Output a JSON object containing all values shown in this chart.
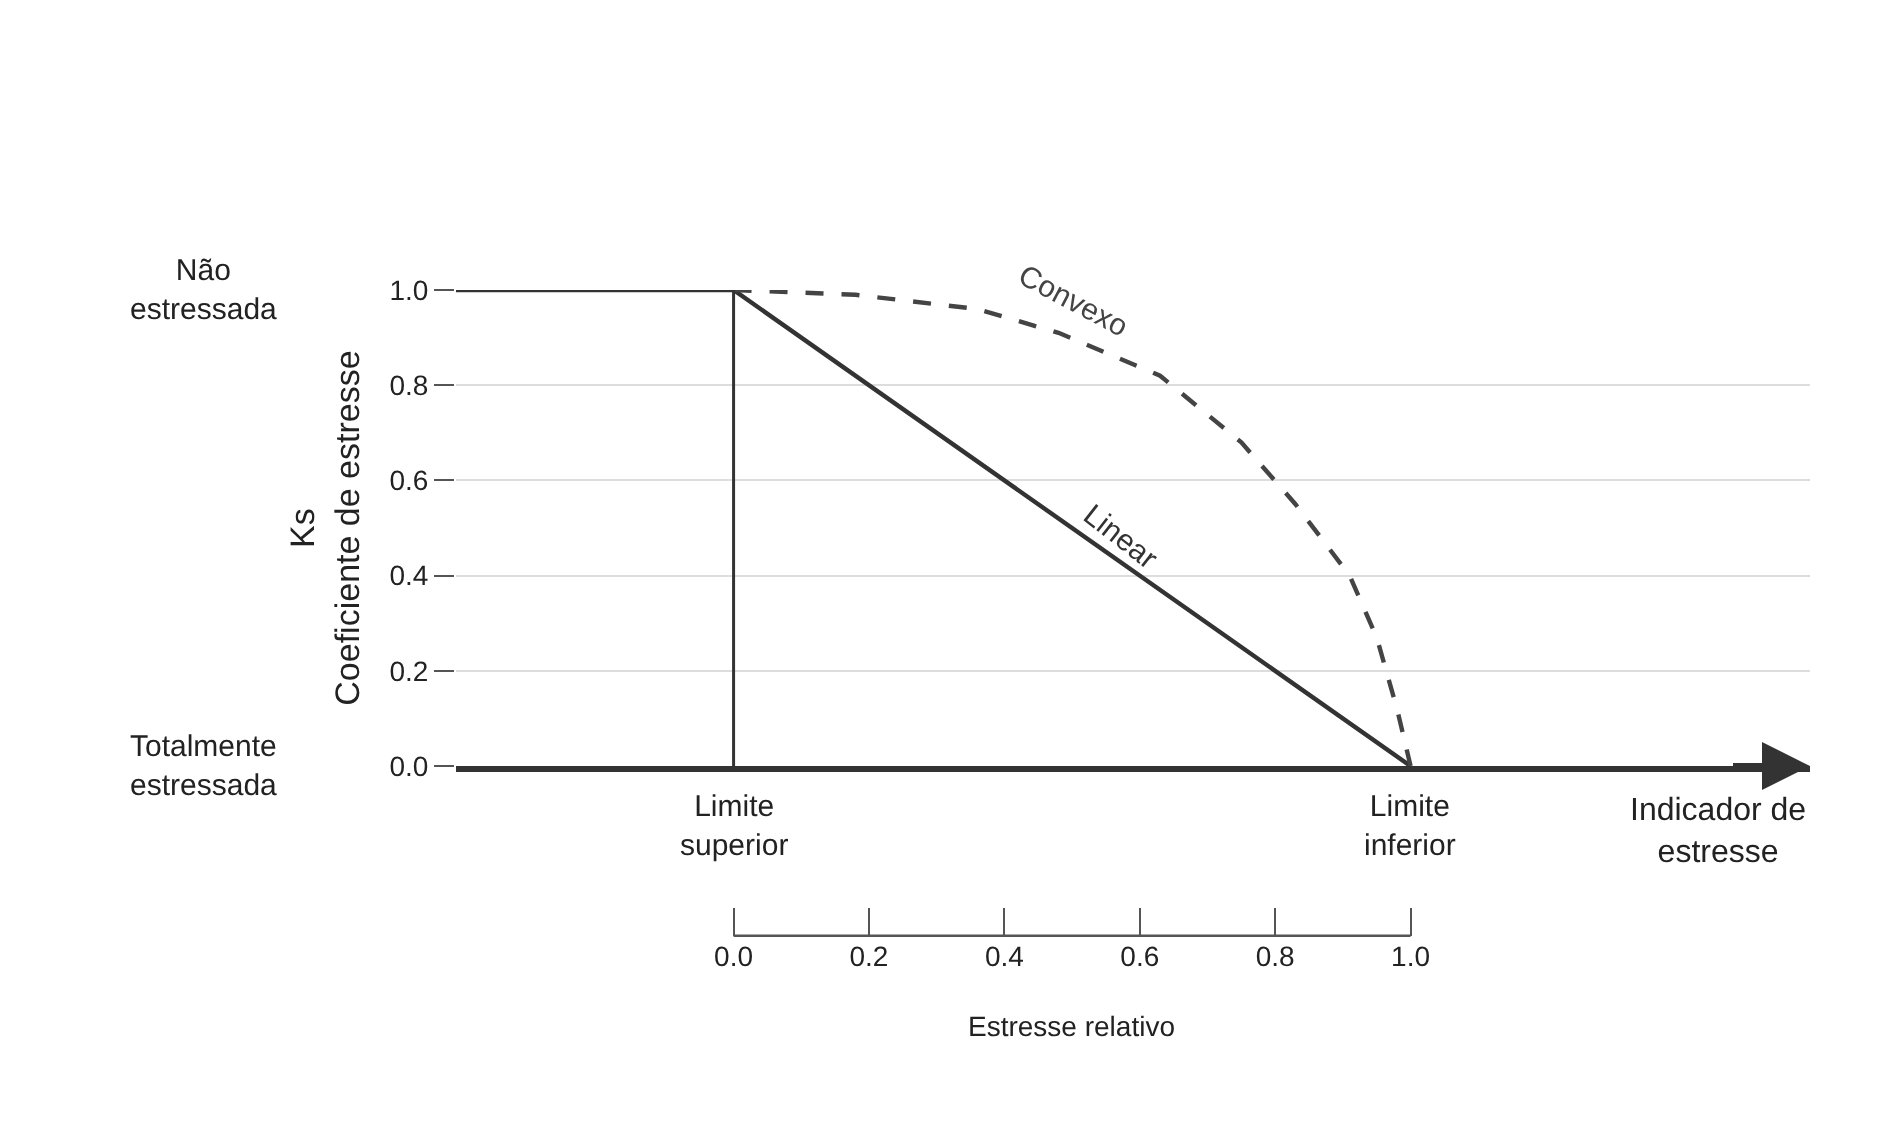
{
  "chart_data": {
    "type": "line",
    "ylabel": "Ks\nCoeficiente de estresse",
    "xlabel": "Estresse relativo",
    "xlim": [
      -0.41,
      1.59
    ],
    "xticks": [
      {
        "value": 0,
        "label": "0.0"
      },
      {
        "value": 0.2,
        "label": "0.2"
      },
      {
        "value": 0.4,
        "label": "0.4"
      },
      {
        "value": 0.6,
        "label": "0.6"
      },
      {
        "value": 0.8,
        "label": "0.8"
      },
      {
        "value": 1,
        "label": "1.0"
      }
    ],
    "ylim": [
      0,
      1
    ],
    "yticks": [
      {
        "value": 0,
        "label": "0.0"
      },
      {
        "value": 0.2,
        "label": "0.2"
      },
      {
        "value": 0.4,
        "label": "0.4"
      },
      {
        "value": 0.6,
        "label": "0.6"
      },
      {
        "value": 0.8,
        "label": "0.8"
      },
      {
        "value": 1,
        "label": "1.0"
      }
    ],
    "grid": "y",
    "legend": false,
    "marker": "none",
    "series": [
      {
        "name": "Linear",
        "color": "#333333",
        "line_style": "solid",
        "x": [
          -0.41,
          0,
          1
        ],
        "values": [
          1,
          1,
          0
        ]
      },
      {
        "name": "Convexo",
        "color": "#444444",
        "line_style": "dashed",
        "x": [
          0,
          0.18,
          0.36,
          0.48,
          0.63,
          0.75,
          0.83,
          0.91,
          0.95,
          0.98,
          1
        ],
        "values": [
          1,
          0.99,
          0.96,
          0.91,
          0.82,
          0.68,
          0.55,
          0.4,
          0.27,
          0.12,
          0
        ]
      }
    ],
    "ref_lines": [
      {
        "axis": "x",
        "value": 0,
        "color": "#333333"
      }
    ],
    "annotations": [
      {
        "text": "Limite\nsuperior",
        "x": 0,
        "y": 0
      },
      {
        "text": "Limite\ninferior",
        "x": 1,
        "y": 0
      },
      "Indicador de\nestresse",
      "Não\nestressada",
      "Totalmente\nestressada"
    ]
  }
}
